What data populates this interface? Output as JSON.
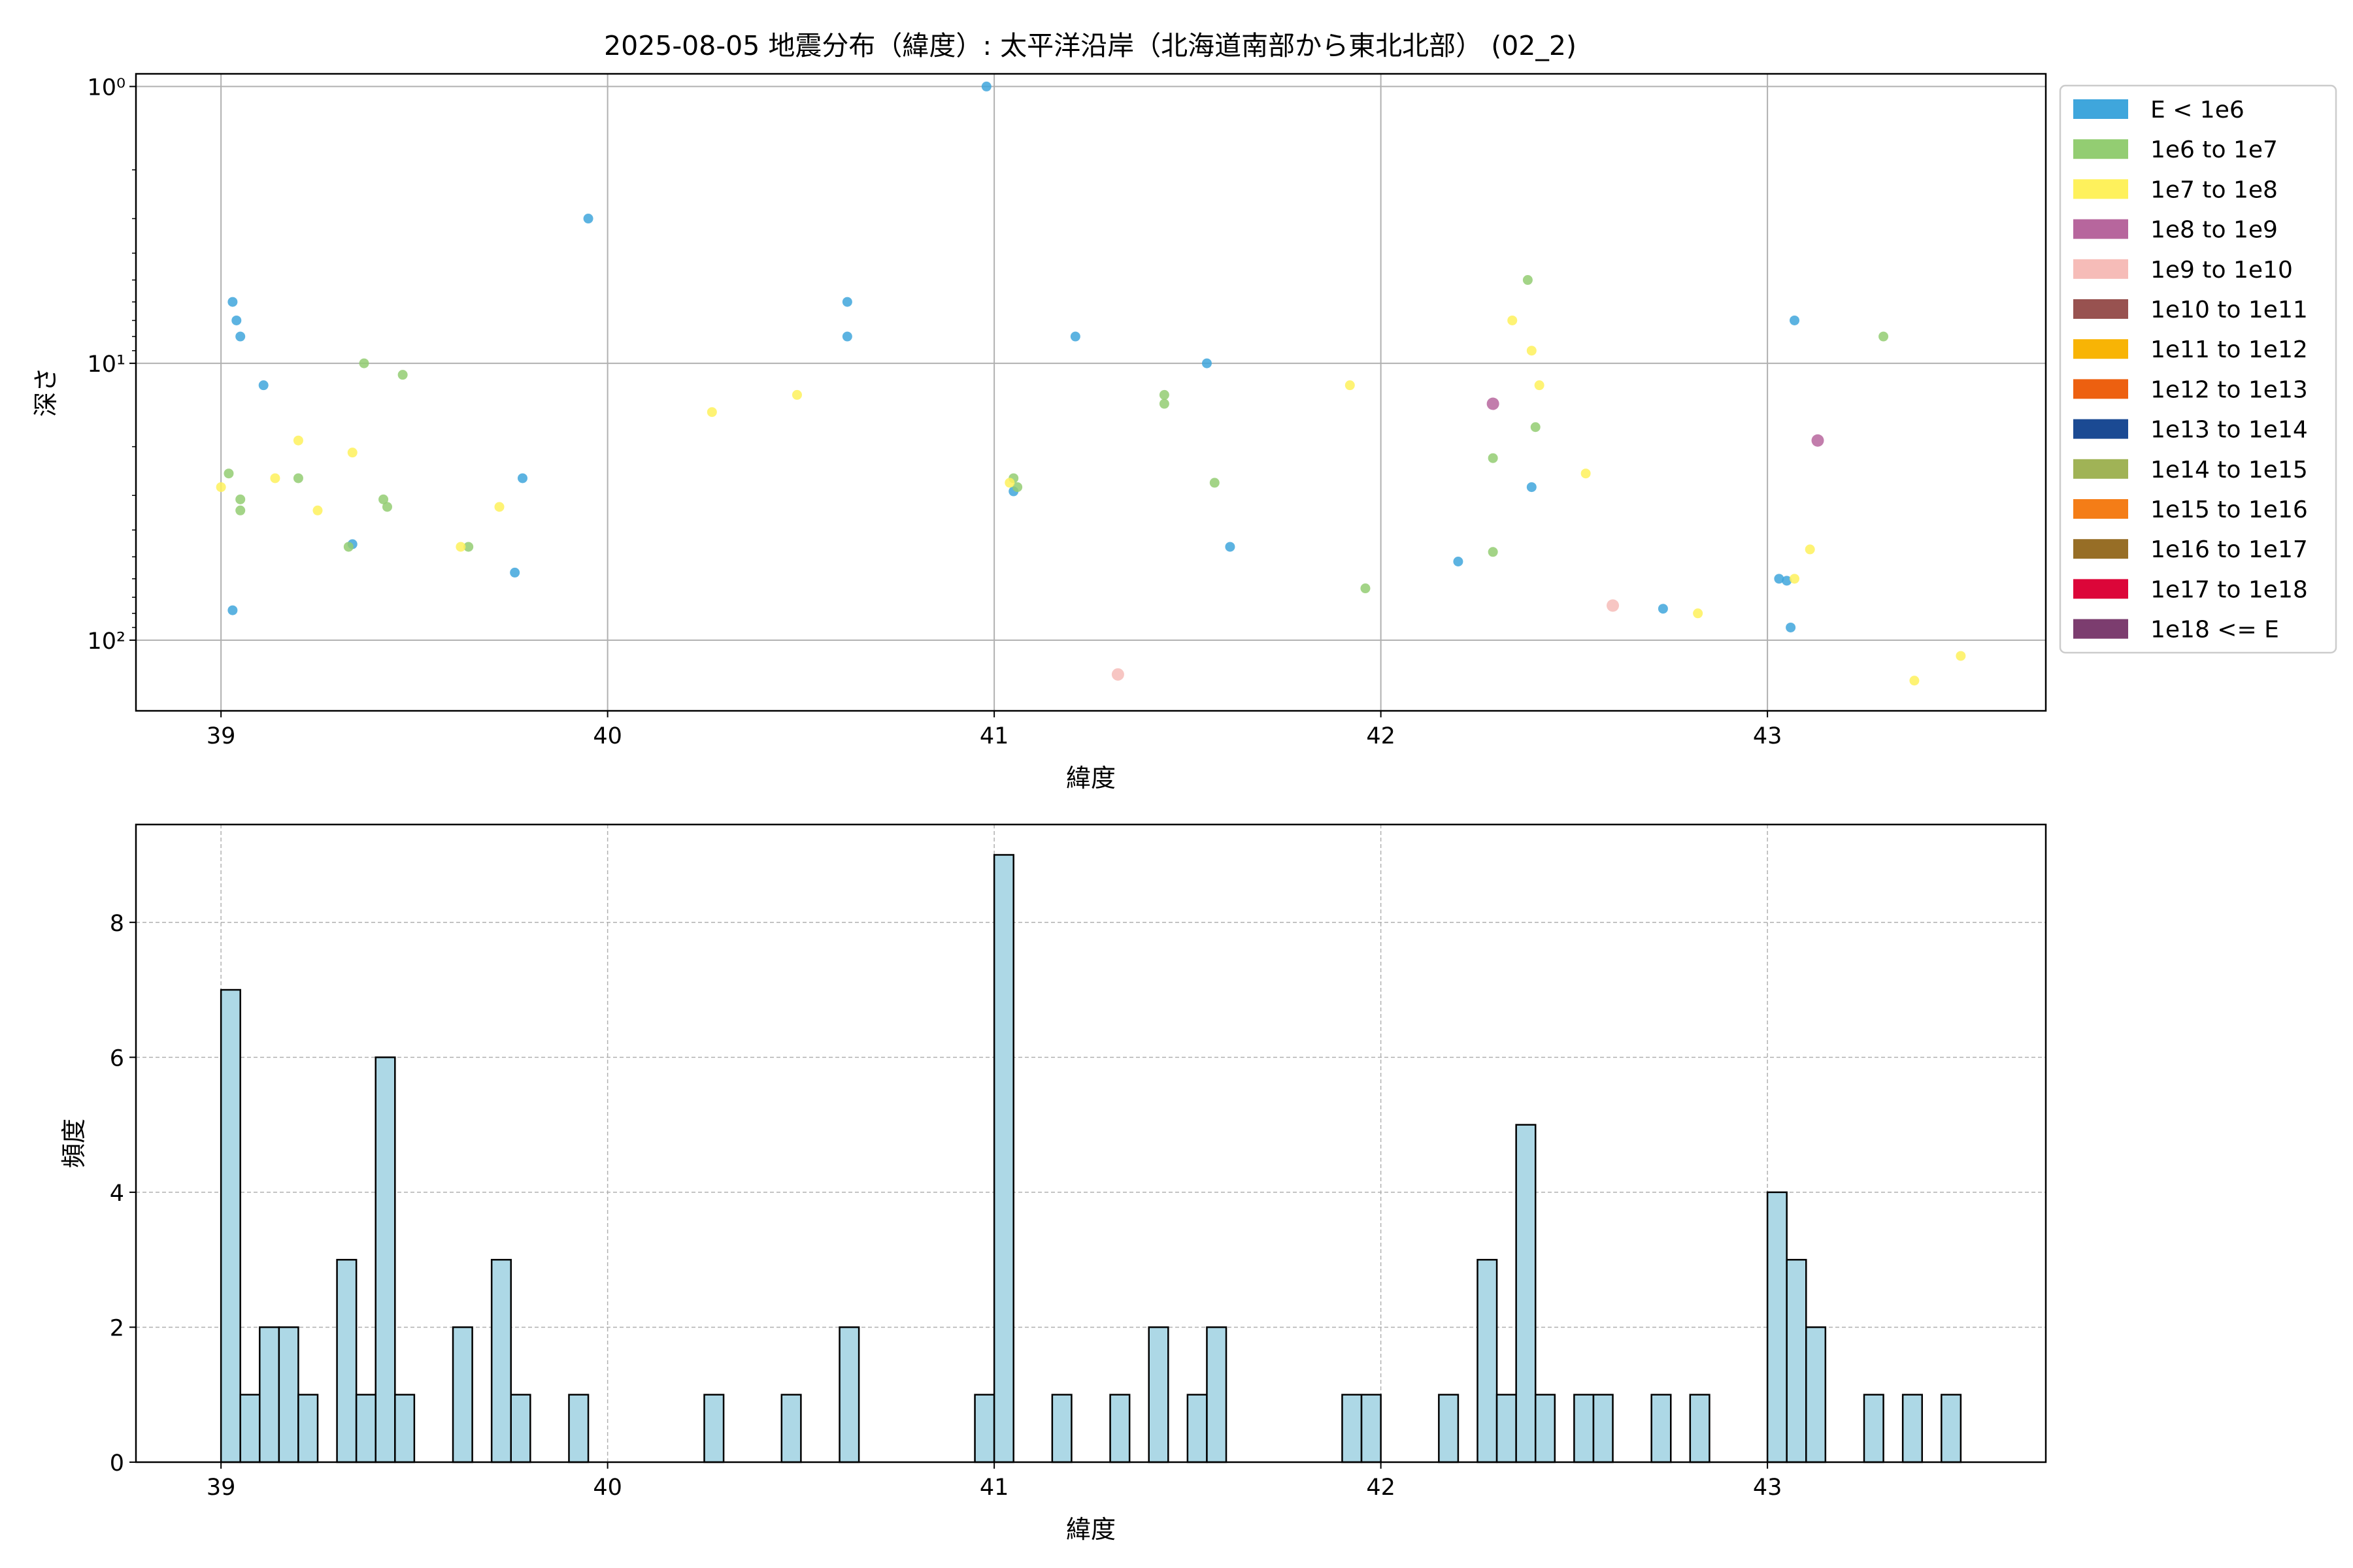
{
  "figure": {
    "title": "2025-08-05 地震分布（緯度）: 太平洋沿岸（北海道南部から東北北部） (02_2)"
  },
  "chart_data": [
    {
      "type": "scatter",
      "xlabel": "緯度",
      "ylabel": "深さ",
      "xlim": [
        38.78,
        43.72
      ],
      "ylim": [
        180,
        0.9
      ],
      "yscale": "log",
      "y_inverted": true,
      "grid": true,
      "x_ticks": [
        39,
        40,
        41,
        42,
        43
      ],
      "x_tick_labels": [
        "39",
        "40",
        "41",
        "42",
        "43"
      ],
      "y_ticks": [
        1,
        10,
        100
      ],
      "y_tick_labels": [
        "10⁰",
        "10¹",
        "10²"
      ],
      "legend_position": "outside-right",
      "legend": [
        {
          "label": "E < 1e6",
          "color": "#3fa6dc"
        },
        {
          "label": "1e6 to 1e7",
          "color": "#93cd72"
        },
        {
          "label": "1e7 to 1e8",
          "color": "#fef15c"
        },
        {
          "label": "1e8 to 1e9",
          "color": "#b7669d"
        },
        {
          "label": "1e9 to 1e10",
          "color": "#f6bcb8"
        },
        {
          "label": "1e10 to 1e11",
          "color": "#985250"
        },
        {
          "label": "1e11 to 1e12",
          "color": "#f8b405"
        },
        {
          "label": "1e12 to 1e13",
          "color": "#ed6010"
        },
        {
          "label": "1e13 to 1e14",
          "color": "#1b4a93"
        },
        {
          "label": "1e14 to 1e15",
          "color": "#a0b356"
        },
        {
          "label": "1e15 to 1e16",
          "color": "#f47d17"
        },
        {
          "label": "1e16 to 1e17",
          "color": "#976e26"
        },
        {
          "label": "1e17 to 1e18",
          "color": "#dc0639"
        },
        {
          "label": "1e18 <= E",
          "color": "#7c3d6f"
        }
      ],
      "points": [
        {
          "x": 39.03,
          "y": 6.0,
          "c": 0
        },
        {
          "x": 39.04,
          "y": 7.0,
          "c": 0
        },
        {
          "x": 39.05,
          "y": 8.0,
          "c": 0
        },
        {
          "x": 39.11,
          "y": 12.0,
          "c": 0
        },
        {
          "x": 39.34,
          "y": 45.0,
          "c": 0
        },
        {
          "x": 39.78,
          "y": 26.0,
          "c": 0
        },
        {
          "x": 39.76,
          "y": 57.0,
          "c": 0
        },
        {
          "x": 39.03,
          "y": 78.0,
          "c": 0
        },
        {
          "x": 39.95,
          "y": 3.0,
          "c": 0
        },
        {
          "x": 40.98,
          "y": 1.0,
          "c": 0
        },
        {
          "x": 40.62,
          "y": 6.0,
          "c": 0
        },
        {
          "x": 40.62,
          "y": 8.0,
          "c": 0
        },
        {
          "x": 41.21,
          "y": 8.0,
          "c": 0
        },
        {
          "x": 41.55,
          "y": 10.0,
          "c": 0
        },
        {
          "x": 41.61,
          "y": 46.0,
          "c": 0
        },
        {
          "x": 41.05,
          "y": 29.0,
          "c": 0
        },
        {
          "x": 42.2,
          "y": 52.0,
          "c": 0
        },
        {
          "x": 42.39,
          "y": 28.0,
          "c": 0
        },
        {
          "x": 42.73,
          "y": 77.0,
          "c": 0
        },
        {
          "x": 43.07,
          "y": 7.0,
          "c": 0
        },
        {
          "x": 43.03,
          "y": 60.0,
          "c": 0
        },
        {
          "x": 43.05,
          "y": 61.0,
          "c": 0
        },
        {
          "x": 43.06,
          "y": 90.0,
          "c": 0
        },
        {
          "x": 39.02,
          "y": 25.0,
          "c": 1
        },
        {
          "x": 39.05,
          "y": 31.0,
          "c": 1
        },
        {
          "x": 39.05,
          "y": 34.0,
          "c": 1
        },
        {
          "x": 39.2,
          "y": 26.0,
          "c": 1
        },
        {
          "x": 39.37,
          "y": 10.0,
          "c": 1
        },
        {
          "x": 39.47,
          "y": 11.0,
          "c": 1
        },
        {
          "x": 39.42,
          "y": 31.0,
          "c": 1
        },
        {
          "x": 39.43,
          "y": 33.0,
          "c": 1
        },
        {
          "x": 39.33,
          "y": 46.0,
          "c": 1
        },
        {
          "x": 39.64,
          "y": 46.0,
          "c": 1
        },
        {
          "x": 41.05,
          "y": 26.0,
          "c": 1
        },
        {
          "x": 41.06,
          "y": 28.0,
          "c": 1
        },
        {
          "x": 41.44,
          "y": 13.0,
          "c": 1
        },
        {
          "x": 41.44,
          "y": 14.0,
          "c": 1
        },
        {
          "x": 41.57,
          "y": 27.0,
          "c": 1
        },
        {
          "x": 41.96,
          "y": 65.0,
          "c": 1
        },
        {
          "x": 42.38,
          "y": 5.0,
          "c": 1
        },
        {
          "x": 42.4,
          "y": 17.0,
          "c": 1
        },
        {
          "x": 42.29,
          "y": 22.0,
          "c": 1
        },
        {
          "x": 42.29,
          "y": 48.0,
          "c": 1
        },
        {
          "x": 43.3,
          "y": 8.0,
          "c": 1
        },
        {
          "x": 39.0,
          "y": 28.0,
          "c": 2
        },
        {
          "x": 39.14,
          "y": 26.0,
          "c": 2
        },
        {
          "x": 39.2,
          "y": 19.0,
          "c": 2
        },
        {
          "x": 39.34,
          "y": 21.0,
          "c": 2
        },
        {
          "x": 39.25,
          "y": 34.0,
          "c": 2
        },
        {
          "x": 39.62,
          "y": 46.0,
          "c": 2
        },
        {
          "x": 39.72,
          "y": 33.0,
          "c": 2
        },
        {
          "x": 40.27,
          "y": 15.0,
          "c": 2
        },
        {
          "x": 40.49,
          "y": 13.0,
          "c": 2
        },
        {
          "x": 41.04,
          "y": 27.0,
          "c": 2
        },
        {
          "x": 41.92,
          "y": 12.0,
          "c": 2
        },
        {
          "x": 42.34,
          "y": 7.0,
          "c": 2
        },
        {
          "x": 42.39,
          "y": 9.0,
          "c": 2
        },
        {
          "x": 42.41,
          "y": 12.0,
          "c": 2
        },
        {
          "x": 42.53,
          "y": 25.0,
          "c": 2
        },
        {
          "x": 42.82,
          "y": 80.0,
          "c": 2
        },
        {
          "x": 43.07,
          "y": 60.0,
          "c": 2
        },
        {
          "x": 43.11,
          "y": 47.0,
          "c": 2
        },
        {
          "x": 43.38,
          "y": 140.0,
          "c": 2
        },
        {
          "x": 43.5,
          "y": 114.0,
          "c": 2
        },
        {
          "x": 42.29,
          "y": 14.0,
          "c": 3
        },
        {
          "x": 43.13,
          "y": 19.0,
          "c": 3
        },
        {
          "x": 41.32,
          "y": 133.0,
          "c": 4
        },
        {
          "x": 42.6,
          "y": 75.0,
          "c": 4
        }
      ]
    },
    {
      "type": "bar",
      "xlabel": "緯度",
      "ylabel": "頻度",
      "xlim": [
        38.78,
        43.72
      ],
      "ylim": [
        0,
        9.45
      ],
      "grid": true,
      "grid_style": "dashed",
      "bar_color": "#add8e6",
      "edge_color": "#000000",
      "bin_width": 0.05,
      "x_ticks": [
        39,
        40,
        41,
        42,
        43
      ],
      "x_tick_labels": [
        "39",
        "40",
        "41",
        "42",
        "43"
      ],
      "y_ticks": [
        0,
        2,
        4,
        6,
        8
      ],
      "y_tick_labels": [
        "0",
        "2",
        "4",
        "6",
        "8"
      ],
      "bins": [
        {
          "x": 39.0,
          "value": 7
        },
        {
          "x": 39.05,
          "value": 1
        },
        {
          "x": 39.1,
          "value": 2
        },
        {
          "x": 39.15,
          "value": 2
        },
        {
          "x": 39.2,
          "value": 1
        },
        {
          "x": 39.3,
          "value": 3
        },
        {
          "x": 39.35,
          "value": 1
        },
        {
          "x": 39.4,
          "value": 6
        },
        {
          "x": 39.45,
          "value": 1
        },
        {
          "x": 39.6,
          "value": 2
        },
        {
          "x": 39.7,
          "value": 3
        },
        {
          "x": 39.75,
          "value": 1
        },
        {
          "x": 39.9,
          "value": 1
        },
        {
          "x": 40.25,
          "value": 1
        },
        {
          "x": 40.45,
          "value": 1
        },
        {
          "x": 40.6,
          "value": 2
        },
        {
          "x": 40.95,
          "value": 1
        },
        {
          "x": 41.0,
          "value": 9
        },
        {
          "x": 41.15,
          "value": 1
        },
        {
          "x": 41.3,
          "value": 1
        },
        {
          "x": 41.4,
          "value": 2
        },
        {
          "x": 41.5,
          "value": 1
        },
        {
          "x": 41.55,
          "value": 2
        },
        {
          "x": 41.9,
          "value": 1
        },
        {
          "x": 41.95,
          "value": 1
        },
        {
          "x": 42.15,
          "value": 1
        },
        {
          "x": 42.25,
          "value": 3
        },
        {
          "x": 42.3,
          "value": 1
        },
        {
          "x": 42.35,
          "value": 5
        },
        {
          "x": 42.4,
          "value": 1
        },
        {
          "x": 42.5,
          "value": 1
        },
        {
          "x": 42.55,
          "value": 1
        },
        {
          "x": 42.7,
          "value": 1
        },
        {
          "x": 42.8,
          "value": 1
        },
        {
          "x": 43.0,
          "value": 4
        },
        {
          "x": 43.05,
          "value": 3
        },
        {
          "x": 43.1,
          "value": 2
        },
        {
          "x": 43.25,
          "value": 1
        },
        {
          "x": 43.35,
          "value": 1
        },
        {
          "x": 43.45,
          "value": 1
        }
      ]
    }
  ]
}
